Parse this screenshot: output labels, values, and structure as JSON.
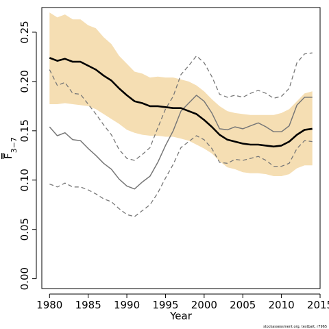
{
  "chart_data": {
    "type": "line",
    "title": "",
    "xlabel": "Year",
    "ylabel_main": "F",
    "ylabel_sub": "3−7",
    "xlim": [
      1979,
      2015
    ],
    "ylim": [
      -0.01,
      0.275
    ],
    "xticks": [
      1980,
      1985,
      1990,
      1995,
      2000,
      2005,
      2010,
      2015
    ],
    "yticks": [
      0.0,
      0.05,
      0.1,
      0.15,
      0.2,
      0.25
    ],
    "ytick_labels": [
      "0.00",
      "0.05",
      "0.10",
      "0.15",
      "0.20",
      "0.25"
    ],
    "grid": false,
    "footnote": "stockassessment.org, testbalt, r7965",
    "colors": {
      "band": "#f5deb3",
      "estimate": "#000000",
      "previous": "#777777"
    },
    "years": [
      1980,
      1981,
      1982,
      1983,
      1984,
      1985,
      1986,
      1987,
      1988,
      1989,
      1990,
      1991,
      1992,
      1993,
      1994,
      1995,
      1996,
      1997,
      1998,
      1999,
      2000,
      2001,
      2002,
      2003,
      2004,
      2005,
      2006,
      2007,
      2008,
      2009,
      2010,
      2011,
      2012,
      2013,
      2014
    ],
    "series": [
      {
        "role": "estimate-band",
        "lower": [
          0.177,
          0.177,
          0.178,
          0.177,
          0.176,
          0.175,
          0.172,
          0.167,
          0.162,
          0.157,
          0.151,
          0.148,
          0.146,
          0.145,
          0.145,
          0.144,
          0.144,
          0.142,
          0.14,
          0.136,
          0.132,
          0.127,
          0.119,
          0.113,
          0.111,
          0.108,
          0.107,
          0.107,
          0.106,
          0.104,
          0.104,
          0.106,
          0.112,
          0.115,
          0.115
        ],
        "upper": [
          0.27,
          0.265,
          0.268,
          0.263,
          0.263,
          0.257,
          0.254,
          0.245,
          0.238,
          0.226,
          0.218,
          0.21,
          0.208,
          0.204,
          0.205,
          0.204,
          0.204,
          0.202,
          0.2,
          0.196,
          0.19,
          0.182,
          0.175,
          0.17,
          0.168,
          0.167,
          0.166,
          0.166,
          0.166,
          0.166,
          0.168,
          0.172,
          0.18,
          0.188,
          0.19
        ]
      },
      {
        "role": "estimate",
        "values": [
          0.224,
          0.221,
          0.223,
          0.22,
          0.22,
          0.216,
          0.212,
          0.206,
          0.201,
          0.193,
          0.186,
          0.18,
          0.178,
          0.175,
          0.175,
          0.174,
          0.173,
          0.173,
          0.17,
          0.167,
          0.161,
          0.154,
          0.146,
          0.141,
          0.139,
          0.137,
          0.136,
          0.136,
          0.135,
          0.134,
          0.135,
          0.139,
          0.146,
          0.151,
          0.152
        ]
      },
      {
        "role": "previous-estimate",
        "values": [
          0.154,
          0.145,
          0.148,
          0.141,
          0.14,
          0.132,
          0.125,
          0.117,
          0.111,
          0.101,
          0.094,
          0.091,
          0.098,
          0.104,
          0.118,
          0.135,
          0.15,
          0.17,
          0.178,
          0.186,
          0.18,
          0.168,
          0.152,
          0.151,
          0.154,
          0.152,
          0.155,
          0.158,
          0.154,
          0.149,
          0.149,
          0.155,
          0.176,
          0.184,
          0.184
        ]
      },
      {
        "role": "previous-upper",
        "values": [
          0.212,
          0.196,
          0.199,
          0.188,
          0.187,
          0.177,
          0.167,
          0.156,
          0.146,
          0.131,
          0.122,
          0.12,
          0.126,
          0.133,
          0.153,
          0.172,
          0.185,
          0.207,
          0.216,
          0.226,
          0.219,
          0.205,
          0.187,
          0.184,
          0.186,
          0.184,
          0.188,
          0.191,
          0.188,
          0.183,
          0.185,
          0.193,
          0.219,
          0.228,
          0.229
        ]
      },
      {
        "role": "previous-lower",
        "values": [
          0.096,
          0.093,
          0.097,
          0.093,
          0.093,
          0.09,
          0.086,
          0.081,
          0.078,
          0.071,
          0.065,
          0.063,
          0.069,
          0.075,
          0.087,
          0.102,
          0.116,
          0.133,
          0.139,
          0.145,
          0.141,
          0.132,
          0.118,
          0.117,
          0.121,
          0.12,
          0.122,
          0.124,
          0.12,
          0.114,
          0.114,
          0.117,
          0.132,
          0.14,
          0.139
        ]
      }
    ]
  }
}
